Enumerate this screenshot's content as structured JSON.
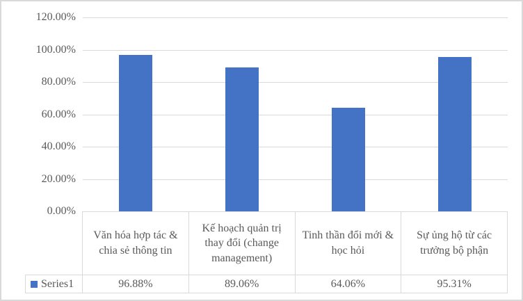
{
  "chart_data": {
    "type": "bar",
    "title": "",
    "xlabel": "",
    "ylabel": "",
    "categories": [
      "Văn hóa hợp tác & chia sẻ thông tin",
      "Kế hoạch quản trị thay đổi (change management)",
      "Tinh thần đổi mới & học hỏi",
      "Sự ủng hộ từ các trưởng bộ phận"
    ],
    "series": [
      {
        "name": "Series1",
        "values": [
          0.9688,
          0.8906,
          0.6406,
          0.9531
        ],
        "value_labels": [
          "96.88%",
          "89.06%",
          "64.06%",
          "95.31%"
        ]
      }
    ],
    "ylim": [
      0,
      1.2
    ],
    "y_ticks": [
      1.2,
      1.0,
      0.8,
      0.6,
      0.4,
      0.2,
      0.0
    ],
    "y_tick_labels": [
      "120.00%",
      "100.00%",
      "80.00%",
      "60.00%",
      "40.00%",
      "20.00%",
      "0.00%"
    ],
    "grid": true,
    "legend_position": "bottom-data-table",
    "colors": {
      "bar": "#4472C4",
      "gridline": "#D9D9D9",
      "table_border": "#D9D9D9",
      "text": "#595959",
      "outer_border": "#D9D9D9"
    }
  }
}
